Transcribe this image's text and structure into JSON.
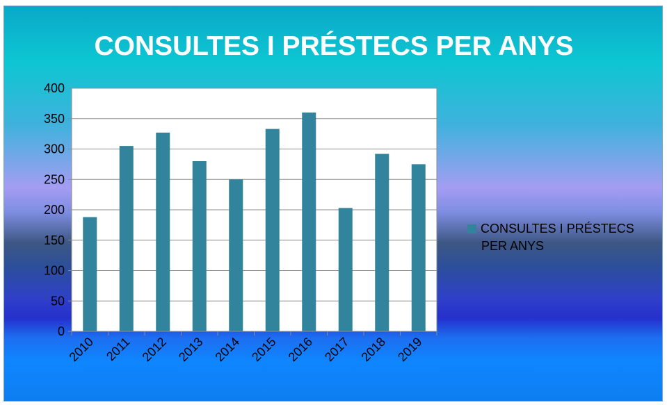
{
  "chart_data": {
    "type": "bar",
    "title": "CONSULTES I PRÉSTECS PER ANYS",
    "categories": [
      "2010",
      "2011",
      "2012",
      "2013",
      "2014",
      "2015",
      "2016",
      "2017",
      "2018",
      "2019"
    ],
    "series": [
      {
        "name": "CONSULTES I PRÉSTECS PER ANYS",
        "values": [
          188,
          305,
          327,
          280,
          250,
          333,
          360,
          203,
          292,
          275
        ]
      }
    ],
    "ylim": [
      0,
      400
    ],
    "yticks": [
      "0",
      "50",
      "100",
      "150",
      "200",
      "250",
      "300",
      "350",
      "400"
    ],
    "xlabel": "",
    "ylabel": "",
    "grid": true,
    "legend_position": "right",
    "colors": {
      "bar": "#31849b",
      "plot_bg": "#ffffff",
      "grid": "#8c8c8c"
    }
  },
  "legend": {
    "line1": "CONSULTES I PRÉSTECS",
    "line2": "PER ANYS"
  }
}
